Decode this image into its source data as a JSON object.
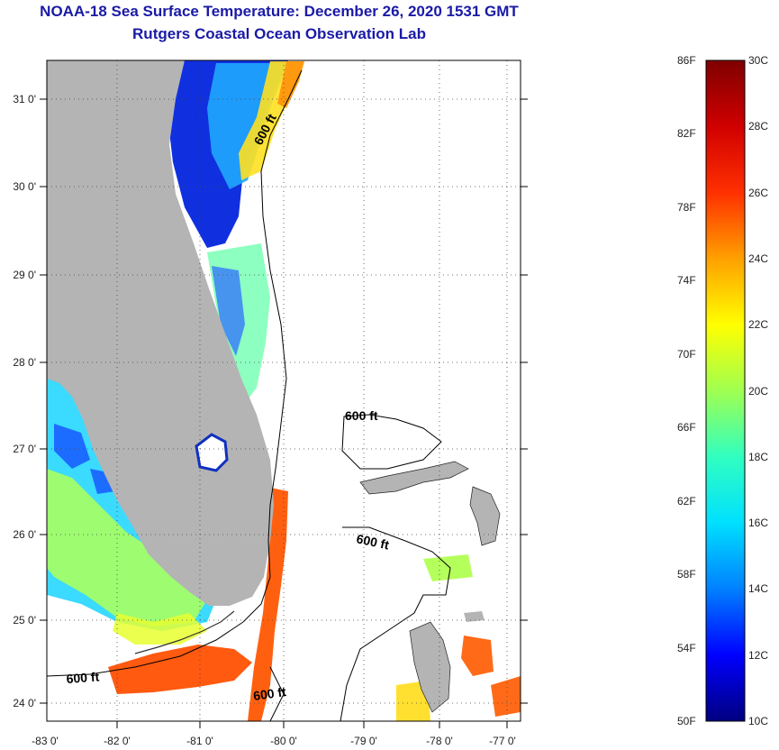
{
  "header": {
    "title_line1": "NOAA-18 Sea Surface Temperature:  December 26, 2020 1531 GMT",
    "title_line2": "Rutgers Coastal Ocean Observation Lab"
  },
  "map": {
    "lon_labels": [
      "-83 0'",
      "-82 0'",
      "-81 0'",
      "-80 0'",
      "-79 0'",
      "-78 0'",
      "-77 0'"
    ],
    "lat_labels": [
      "31 0'",
      "30 0'",
      "29 0'",
      "28 0'",
      "27 0'",
      "26 0'",
      "25 0'",
      "24 0'"
    ],
    "contour_labels": [
      "600 ft",
      "600 ft",
      "600 ft",
      "600 ft",
      "600 ft"
    ],
    "colors": {
      "land": "#b4b4b4",
      "nodata": "#ffffff",
      "frame": "#000000",
      "grid": "#555555"
    }
  },
  "colorbar": {
    "fahrenheit": [
      "86F",
      "82F",
      "78F",
      "74F",
      "70F",
      "66F",
      "62F",
      "58F",
      "54F",
      "50F"
    ],
    "celsius": [
      "30C",
      "28C",
      "26C",
      "24C",
      "22C",
      "20C",
      "18C",
      "16C",
      "14C",
      "12C",
      "10C"
    ],
    "stops": [
      "#00007f",
      "#0000ff",
      "#0080ff",
      "#00e0ff",
      "#30ffc0",
      "#a0ff50",
      "#ffff00",
      "#ffa000",
      "#ff3000",
      "#d00000",
      "#7f0000"
    ]
  }
}
